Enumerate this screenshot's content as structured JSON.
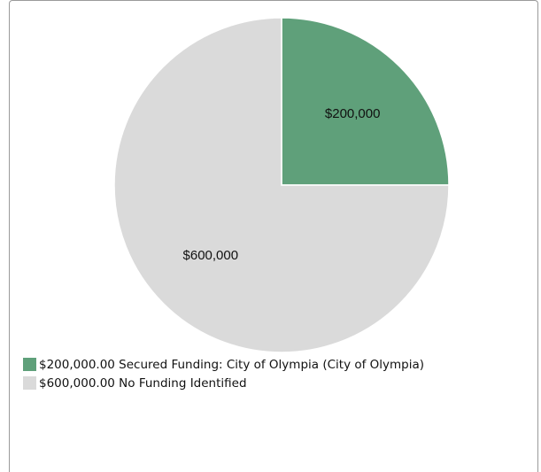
{
  "chart_data": {
    "type": "pie",
    "slices": [
      {
        "value": 200000,
        "label": "$200,000",
        "legend": "$200,000.00 Secured Funding: City of Olympia (City of Olympia)",
        "color": "#5fa07a"
      },
      {
        "value": 600000,
        "label": "$600,000",
        "legend": "$600,000.00 No Funding Identified",
        "color": "#dadada"
      }
    ],
    "legend_position": "bottom-left"
  }
}
